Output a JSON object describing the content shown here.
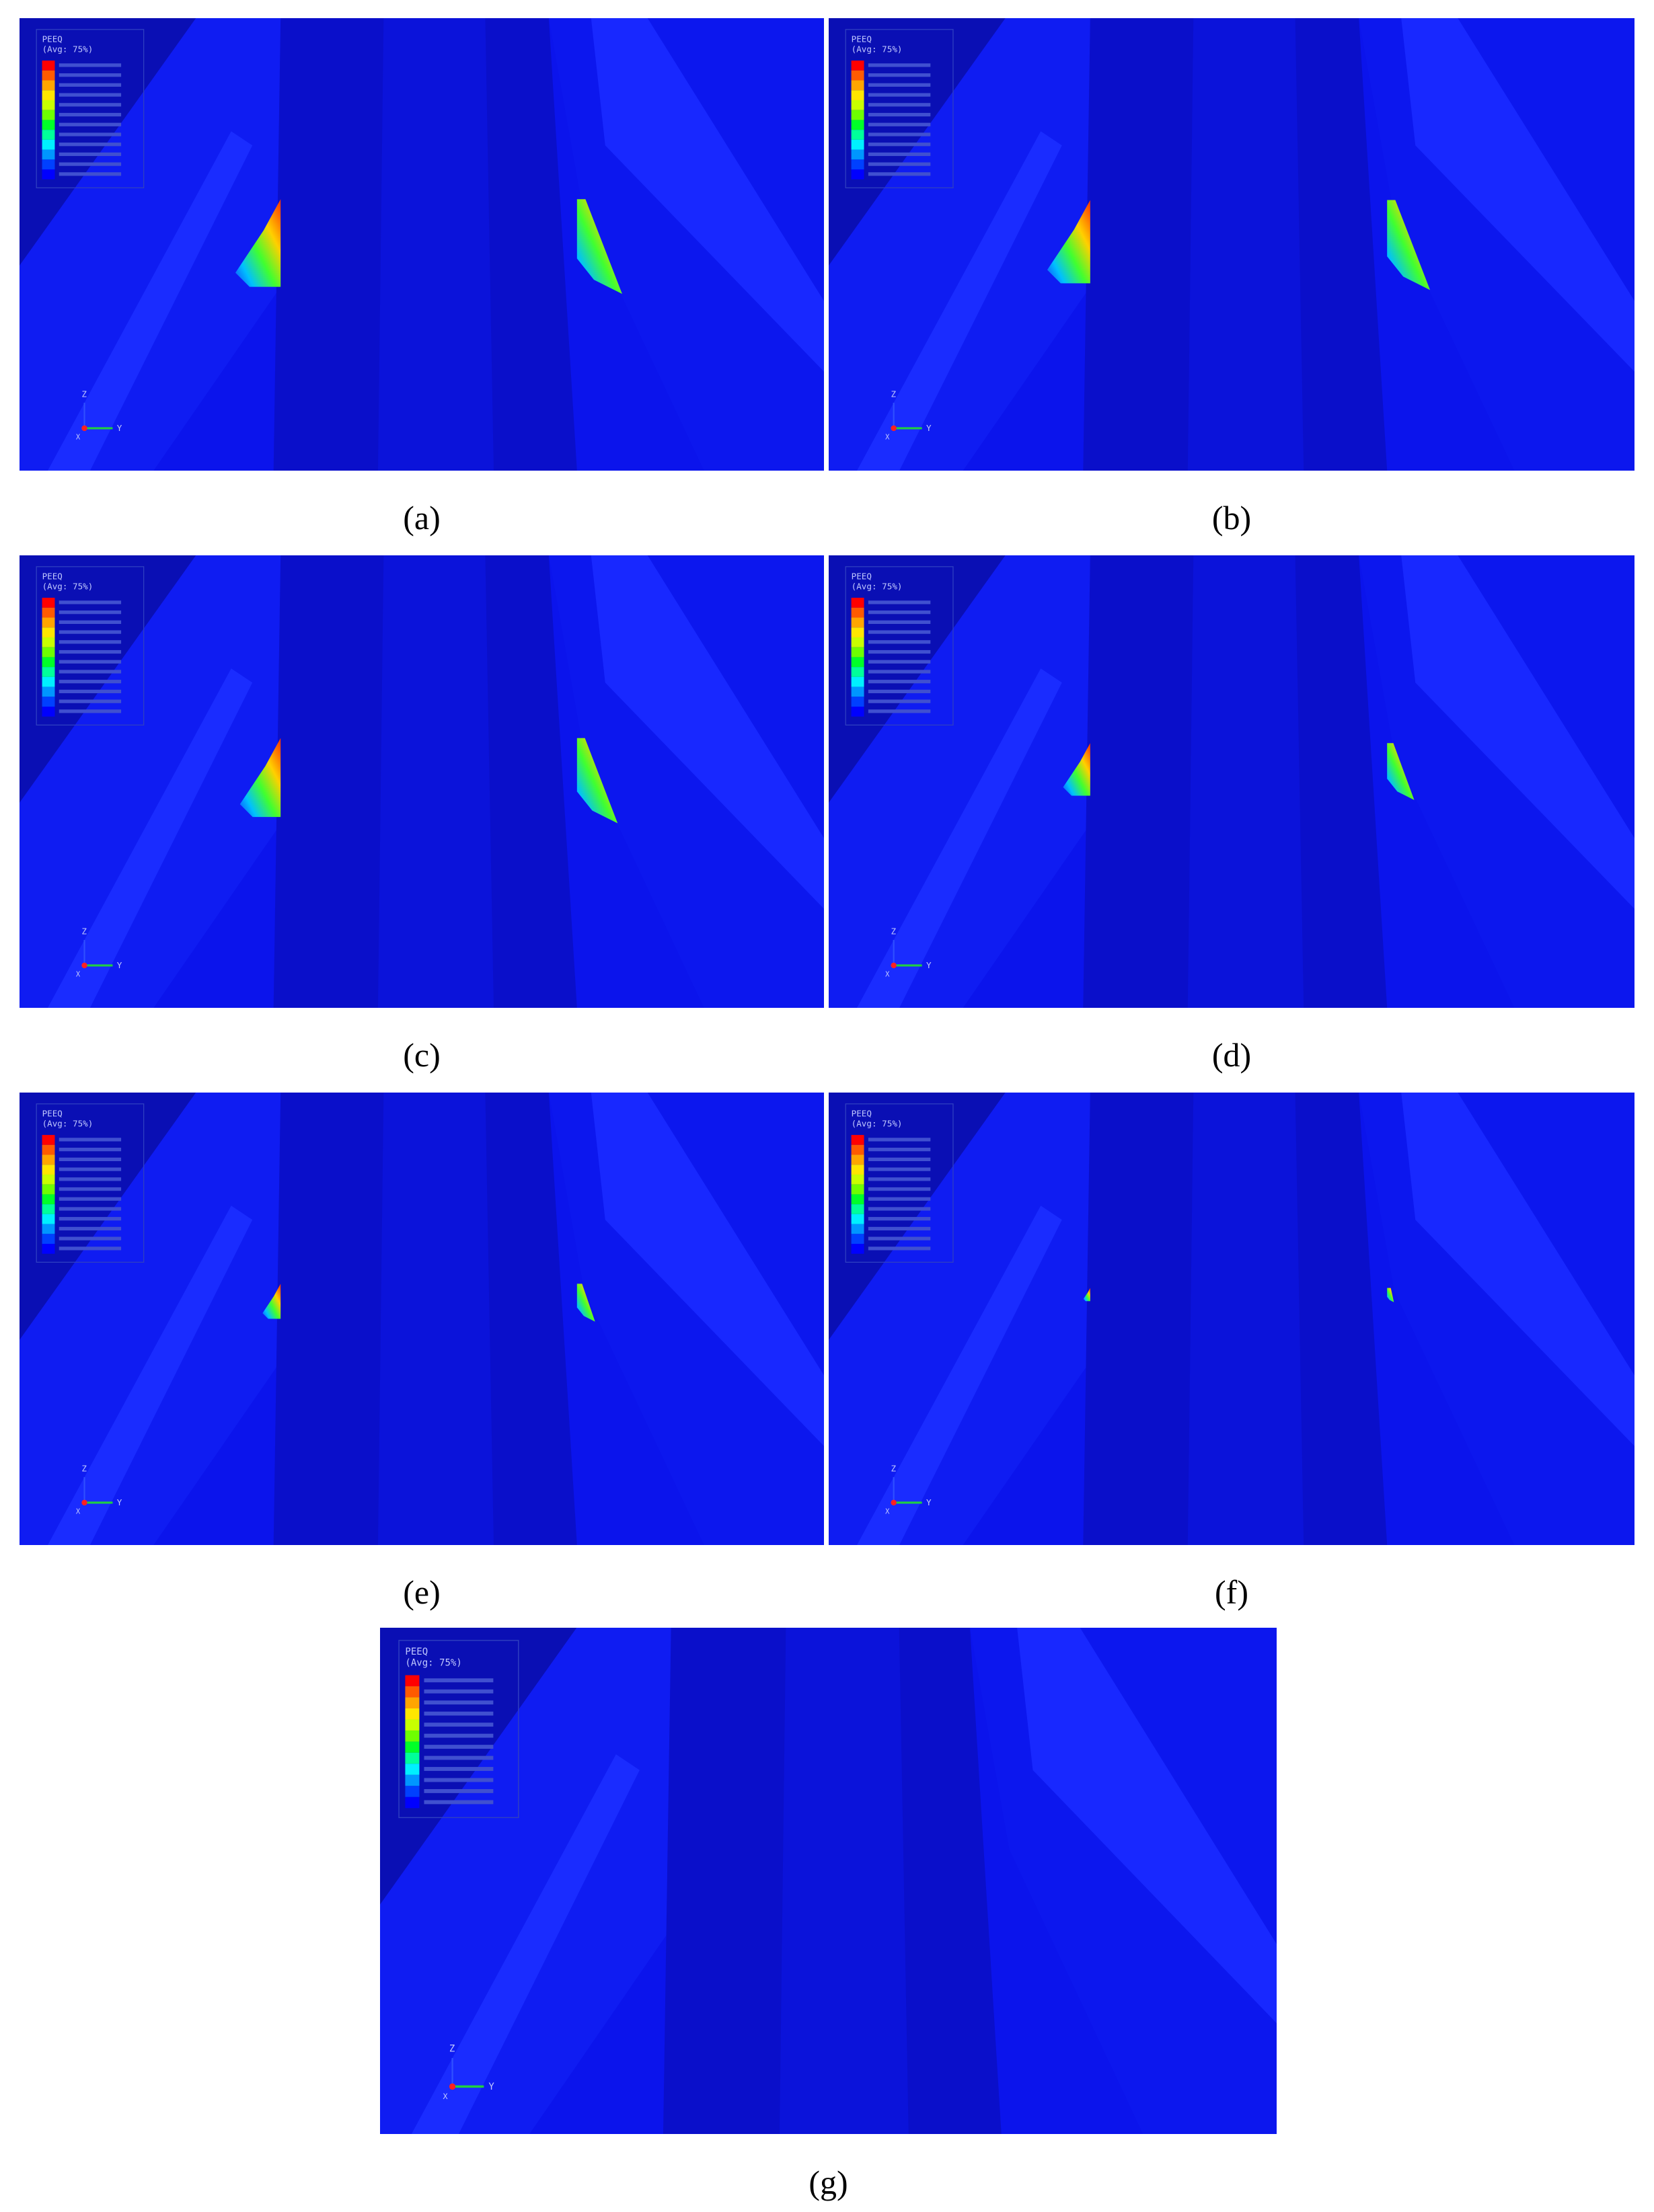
{
  "panels": [
    {
      "caption": "(a)",
      "legend_title": "PEEQ",
      "legend_subtitle": "(Avg: 75%)",
      "axes": {
        "z": "Z",
        "y": "Y",
        "x": "X"
      }
    },
    {
      "caption": "(b)",
      "legend_title": "PEEQ",
      "legend_subtitle": "(Avg: 75%)",
      "axes": {
        "z": "Z",
        "y": "Y",
        "x": "X"
      }
    },
    {
      "caption": "(c)",
      "legend_title": "PEEQ",
      "legend_subtitle": "(Avg: 75%)",
      "axes": {
        "z": "Z",
        "y": "Y",
        "x": "X"
      }
    },
    {
      "caption": "(d)",
      "legend_title": "PEEQ",
      "legend_subtitle": "(Avg: 75%)",
      "axes": {
        "z": "Z",
        "y": "Y",
        "x": "X"
      }
    },
    {
      "caption": "(e)",
      "legend_title": "PEEQ",
      "legend_subtitle": "(Avg: 75%)",
      "axes": {
        "z": "Z",
        "y": "Y",
        "x": "X"
      }
    },
    {
      "caption": "(f)",
      "legend_title": "PEEQ",
      "legend_subtitle": "(Avg: 75%)",
      "axes": {
        "z": "Z",
        "y": "Y",
        "x": "X"
      }
    },
    {
      "caption": "(g)",
      "legend_title": "PEEQ",
      "legend_subtitle": "(Avg: 75%)",
      "axes": {
        "z": "Z",
        "y": "Y",
        "x": "X"
      }
    }
  ]
}
